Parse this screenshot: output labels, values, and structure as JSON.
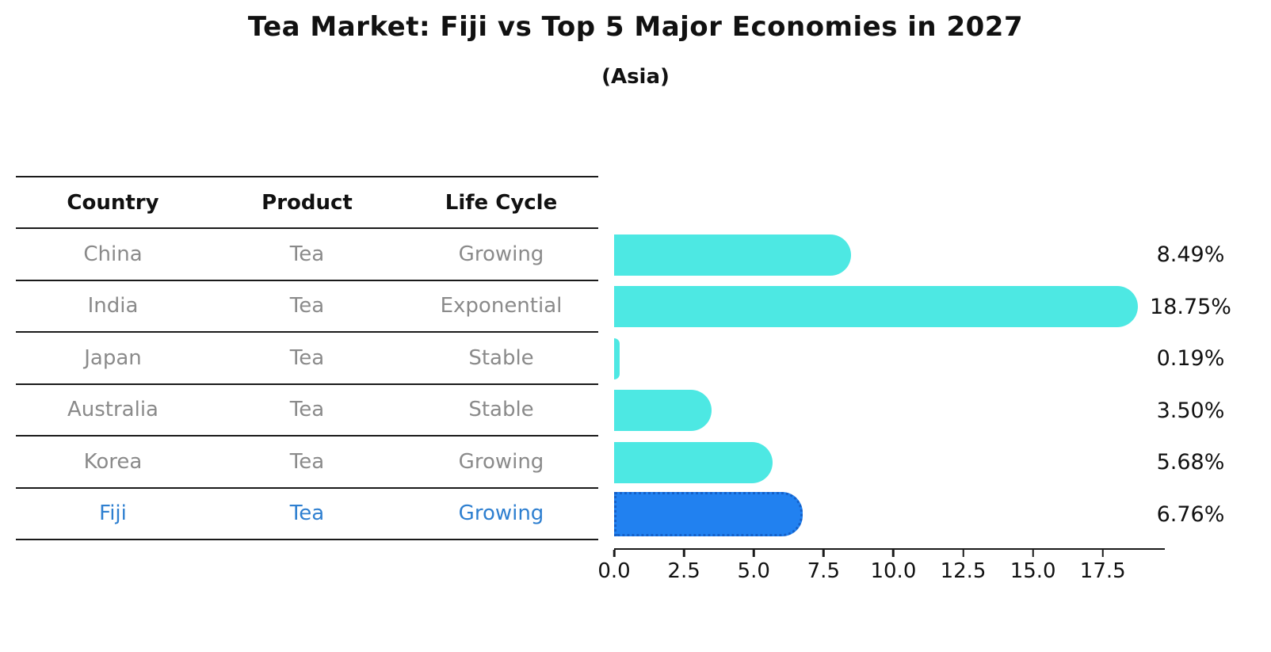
{
  "title": "Tea Market: Fiji vs Top 5 Major Economies in 2027",
  "subtitle": "(Asia)",
  "table": {
    "headers": [
      "Country",
      "Product",
      "Life Cycle"
    ],
    "rows": [
      {
        "country": "China",
        "product": "Tea",
        "life_cycle": "Growing",
        "highlighted": false
      },
      {
        "country": "India",
        "product": "Tea",
        "life_cycle": "Exponential",
        "highlighted": false
      },
      {
        "country": "Japan",
        "product": "Tea",
        "life_cycle": "Stable",
        "highlighted": false
      },
      {
        "country": "Australia",
        "product": "Tea",
        "life_cycle": "Stable",
        "highlighted": false
      },
      {
        "country": "Korea",
        "product": "Tea",
        "life_cycle": "Growing",
        "highlighted": false
      },
      {
        "country": "Fiji",
        "product": "Tea",
        "life_cycle": "Growing",
        "highlighted": true
      }
    ]
  },
  "chart_data": {
    "type": "bar",
    "orientation": "horizontal",
    "title": "Tea Market: Fiji vs Top 5 Major Economies in 2027",
    "subtitle": "(Asia)",
    "categories": [
      "China",
      "India",
      "Japan",
      "Australia",
      "Korea",
      "Fiji"
    ],
    "values": [
      8.49,
      18.75,
      0.19,
      3.5,
      5.68,
      6.76
    ],
    "value_labels": [
      "8.49%",
      "18.75%",
      "0.19%",
      "3.50%",
      "5.68%",
      "6.76%"
    ],
    "x_ticks": [
      0.0,
      2.5,
      5.0,
      7.5,
      10.0,
      12.5,
      15.0,
      17.5
    ],
    "x_tick_labels": [
      "0.0",
      "2.5",
      "5.0",
      "7.5",
      "10.0",
      "12.5",
      "15.0",
      "17.5"
    ],
    "xlim": [
      0,
      19.72
    ],
    "grid": false,
    "legend": "none",
    "highlight_index": 5
  },
  "colors": {
    "bar_fill": "#4DE8E3",
    "highlight_fill": "#2181F0",
    "highlight_border": "#1460C8",
    "highlight_text": "#2E7FD0",
    "table_text": "#8a8a8a",
    "axis_line": "#1a1a1a"
  }
}
